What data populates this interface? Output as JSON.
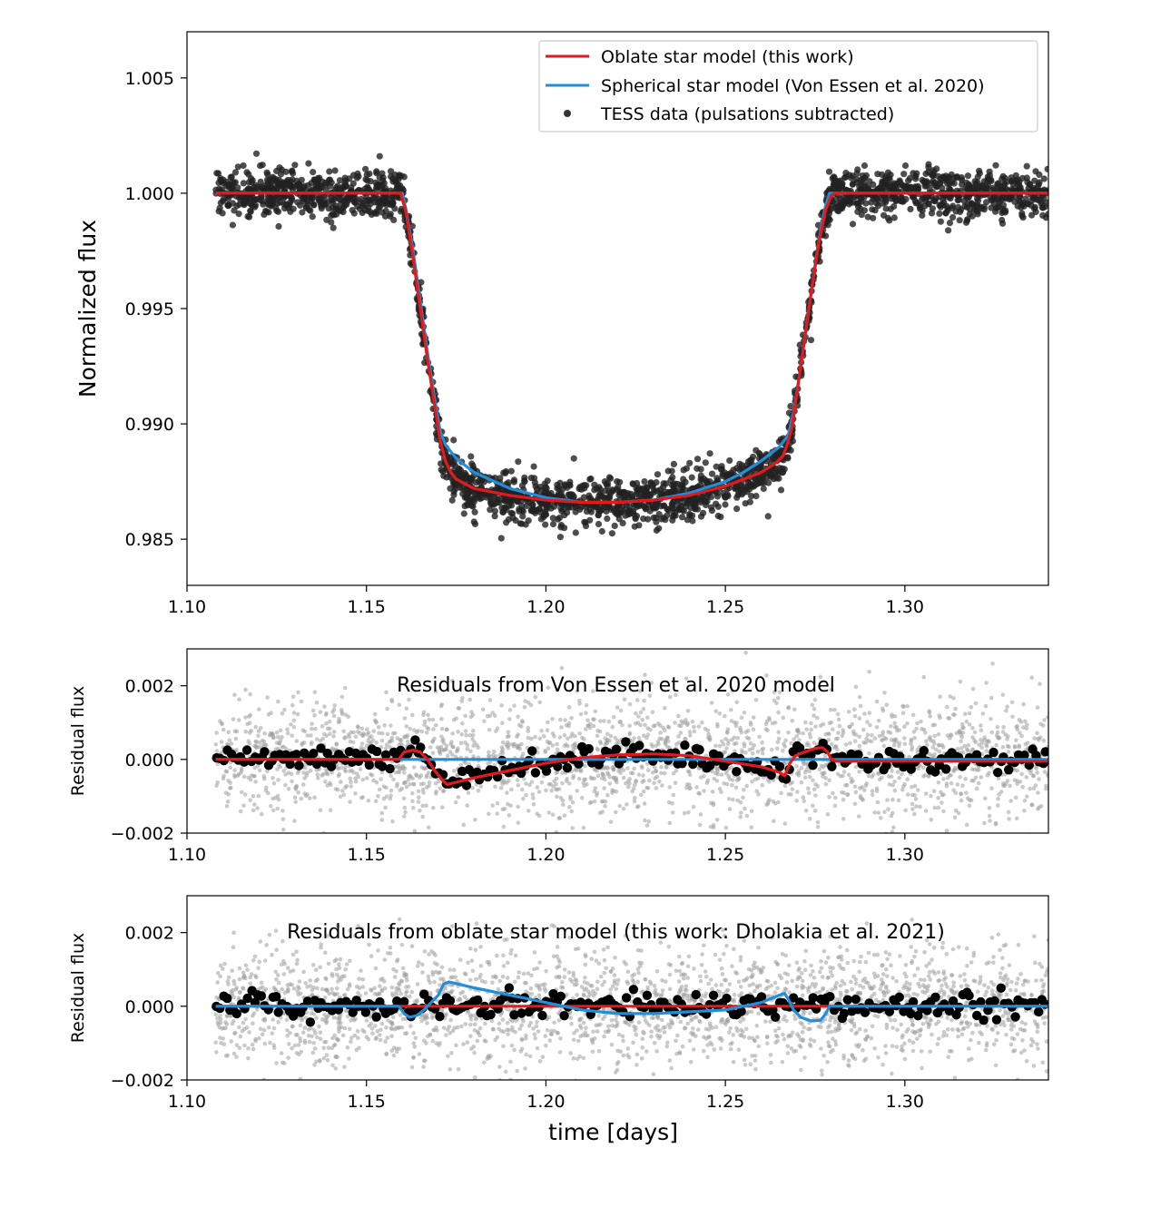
{
  "chart_data": [
    {
      "type": "line",
      "panel": "transit",
      "title": "",
      "xlabel": "",
      "ylabel": "Normalized flux",
      "xlim": [
        1.1,
        1.34
      ],
      "ylim": [
        0.983,
        1.007
      ],
      "xticks": [
        1.1,
        1.15,
        1.2,
        1.25,
        1.3
      ],
      "xtick_labels": [
        "1.10",
        "1.15",
        "1.20",
        "1.25",
        "1.30"
      ],
      "yticks": [
        0.985,
        0.99,
        0.995,
        1.0,
        1.005
      ],
      "ytick_labels": [
        "0.985",
        "0.990",
        "0.995",
        "1.000",
        "1.005"
      ],
      "grid": false,
      "legend": {
        "placement": "upper-right",
        "entries": [
          {
            "label": "Oblate star model (this work)",
            "kind": "line",
            "color": "#e31a1c"
          },
          {
            "label": "Spherical star model (Von Essen et al. 2020)",
            "kind": "line",
            "color": "#1f8fdc"
          },
          {
            "label": "TESS data (pulsations subtracted)",
            "kind": "marker",
            "color": "#333333"
          }
        ]
      },
      "series": [
        {
          "name": "TESS data (pulsations subtracted)",
          "kind": "scatter",
          "color": "#222222",
          "x_range": [
            1.108,
            1.34
          ],
          "approx_points": 2400,
          "scatter_sigma": 0.0005,
          "note_profile": "follows transit light curve"
        },
        {
          "name": "Spherical star model (Von Essen et al. 2020)",
          "kind": "line",
          "color": "#1f8fdc",
          "x": [
            1.108,
            1.16,
            1.161,
            1.163,
            1.165,
            1.167,
            1.169,
            1.1705,
            1.172,
            1.175,
            1.18,
            1.19,
            1.2,
            1.21,
            1.22,
            1.23,
            1.24,
            1.25,
            1.255,
            1.26,
            1.265,
            1.2675,
            1.269,
            1.271,
            1.273,
            1.275,
            1.277,
            1.278,
            1.279,
            1.34
          ],
          "y": [
            1.0,
            1.0,
            0.9993,
            0.9975,
            0.9953,
            0.9931,
            0.9911,
            0.9897,
            0.9891,
            0.9885,
            0.9879,
            0.9872,
            0.9868,
            0.9866,
            0.9866,
            0.9867,
            0.987,
            0.9875,
            0.9879,
            0.9884,
            0.989,
            0.9895,
            0.9905,
            0.9925,
            0.9947,
            0.9969,
            0.9988,
            0.9995,
            1.0,
            1.0
          ]
        },
        {
          "name": "Oblate star model (this work)",
          "kind": "line",
          "color": "#e31a1c",
          "x": [
            1.108,
            1.1595,
            1.161,
            1.163,
            1.165,
            1.167,
            1.169,
            1.1705,
            1.172,
            1.1735,
            1.175,
            1.18,
            1.19,
            1.2,
            1.21,
            1.22,
            1.23,
            1.24,
            1.25,
            1.255,
            1.26,
            1.264,
            1.266,
            1.267,
            1.2685,
            1.27,
            1.272,
            1.274,
            1.276,
            1.278,
            1.2795,
            1.2805,
            1.34
          ],
          "y": [
            1.0,
            1.0,
            0.9992,
            0.9972,
            0.995,
            0.9928,
            0.9908,
            0.9893,
            0.9884,
            0.9879,
            0.9876,
            0.9872,
            0.9869,
            0.9867,
            0.9866,
            0.9866,
            0.9867,
            0.9869,
            0.9873,
            0.9876,
            0.9879,
            0.9883,
            0.9886,
            0.989,
            0.9898,
            0.9914,
            0.9936,
            0.9958,
            0.9978,
            0.9993,
            0.9999,
            1.0,
            1.0
          ]
        }
      ]
    },
    {
      "type": "line",
      "panel": "residuals-spherical",
      "title": "Residuals from Von Essen et al. 2020 model",
      "xlabel": "",
      "ylabel": "Residual flux",
      "xlim": [
        1.1,
        1.34
      ],
      "ylim": [
        -0.002,
        0.003
      ],
      "xticks": [
        1.1,
        1.15,
        1.2,
        1.25,
        1.3
      ],
      "xtick_labels": [
        "1.10",
        "1.15",
        "1.20",
        "1.25",
        "1.30"
      ],
      "yticks": [
        -0.002,
        0.0,
        0.002
      ],
      "ytick_labels": [
        "−0.002",
        "0.000",
        "0.002"
      ],
      "grid": false,
      "series": [
        {
          "name": "",
          "kind": "scatter",
          "color": "#9e9e9e",
          "note": "unbinned residuals",
          "x_range": [
            1.108,
            1.34
          ],
          "approx_points": 2400,
          "scatter_sigma": 0.0008
        },
        {
          "name": "",
          "kind": "scatter",
          "color": "#000000",
          "note": "binned residuals",
          "x_range": [
            1.108,
            1.34
          ],
          "approx_points": 240,
          "scatter_sigma": 0.00015,
          "follows": "red line"
        },
        {
          "name": "",
          "kind": "line",
          "color": "#1f8fdc",
          "x": [
            1.108,
            1.34
          ],
          "y": [
            0.0,
            0.0
          ]
        },
        {
          "name": "",
          "kind": "line",
          "color": "#e31a1c",
          "x": [
            1.108,
            1.159,
            1.1605,
            1.163,
            1.165,
            1.167,
            1.169,
            1.1715,
            1.1725,
            1.18,
            1.19,
            1.2,
            1.21,
            1.22,
            1.23,
            1.24,
            1.25,
            1.26,
            1.265,
            1.2665,
            1.268,
            1.2695,
            1.272,
            1.275,
            1.277,
            1.2785,
            1.2795,
            1.281,
            1.34
          ],
          "y": [
            0.0,
            0.0,
            0.0002,
            0.00025,
            0.0002,
            0.0,
            -0.0003,
            -0.0006,
            -0.00068,
            -0.0005,
            -0.0003,
            -0.0001,
            5e-05,
            0.00012,
            0.00015,
            0.0001,
            -5e-05,
            -0.0002,
            -0.00035,
            -0.00045,
            -0.0001,
            0.0001,
            0.0002,
            0.0003,
            0.00032,
            0.0002,
            0.0,
            -5e-05,
            -5e-05
          ]
        }
      ]
    },
    {
      "type": "line",
      "panel": "residuals-oblate",
      "title": "Residuals from oblate star model (this work: Dholakia et al. 2021)",
      "xlabel": "time [days]",
      "ylabel": "Residual flux",
      "xlim": [
        1.1,
        1.34
      ],
      "ylim": [
        -0.002,
        0.003
      ],
      "xticks": [
        1.1,
        1.15,
        1.2,
        1.25,
        1.3
      ],
      "xtick_labels": [
        "1.10",
        "1.15",
        "1.20",
        "1.25",
        "1.30"
      ],
      "yticks": [
        -0.002,
        0.0,
        0.002
      ],
      "ytick_labels": [
        "−0.002",
        "0.000",
        "0.002"
      ],
      "grid": false,
      "series": [
        {
          "name": "",
          "kind": "scatter",
          "color": "#9e9e9e",
          "note": "unbinned residuals",
          "x_range": [
            1.108,
            1.34
          ],
          "approx_points": 2400,
          "scatter_sigma": 0.0008
        },
        {
          "name": "",
          "kind": "scatter",
          "color": "#000000",
          "note": "binned residuals",
          "x_range": [
            1.108,
            1.34
          ],
          "approx_points": 240,
          "scatter_sigma": 0.00018,
          "follows": "red line"
        },
        {
          "name": "",
          "kind": "line",
          "color": "#1f8fdc",
          "x": [
            1.108,
            1.159,
            1.1605,
            1.162,
            1.164,
            1.166,
            1.168,
            1.17,
            1.1715,
            1.173,
            1.18,
            1.19,
            1.2,
            1.21,
            1.22,
            1.23,
            1.24,
            1.25,
            1.26,
            1.265,
            1.2665,
            1.2675,
            1.269,
            1.271,
            1.274,
            1.2765,
            1.278,
            1.279,
            1.34
          ],
          "y": [
            0.0,
            0.0,
            -0.0002,
            -0.0003,
            -0.00025,
            -0.0001,
            0.0001,
            0.0003,
            0.0006,
            0.00066,
            0.0005,
            0.0003,
            0.0001,
            -0.0001,
            -0.0002,
            -0.0002,
            -0.00015,
            -0.0001,
            0.0001,
            0.0003,
            0.00035,
            0.0002,
            -0.0001,
            -0.0003,
            -0.0004,
            -0.00038,
            -0.0002,
            0.0,
            0.0
          ]
        },
        {
          "name": "",
          "kind": "line",
          "color": "#e31a1c",
          "x": [
            1.108,
            1.34
          ],
          "y": [
            0.0,
            0.0
          ]
        }
      ]
    }
  ]
}
